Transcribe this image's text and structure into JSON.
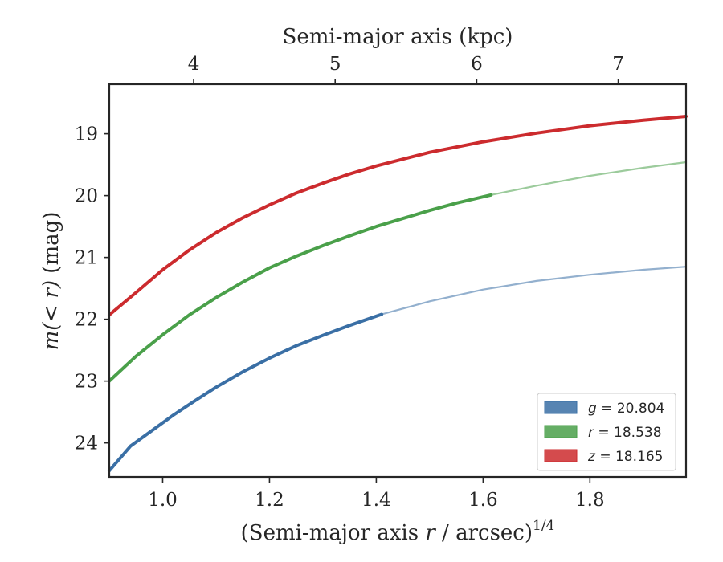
{
  "chart_data": {
    "type": "line",
    "xlabel": "(Semi-major axis r / arcsec)^1/4",
    "xlabel_parts": {
      "pre": "(Semi-major axis ",
      "var": "r",
      "mid": " / arcsec)",
      "sup": "1/4"
    },
    "ylabel": "m(< r) (mag)",
    "ylabel_parts": {
      "math": "m(< r)",
      "unit": " (mag)"
    },
    "top_xlabel": "Semi-major axis (kpc)",
    "xlim": [
      0.9,
      1.98
    ],
    "ylim": [
      24.55,
      18.2
    ],
    "y_inverted": true,
    "x_ticks": [
      "1.0",
      "1.2",
      "1.4",
      "1.6",
      "1.8"
    ],
    "x_tick_values": [
      1.0,
      1.2,
      1.4,
      1.6,
      1.8
    ],
    "y_ticks": [
      "19",
      "20",
      "21",
      "22",
      "23",
      "24"
    ],
    "y_tick_values": [
      19,
      20,
      21,
      22,
      23,
      24
    ],
    "top_ticks": [
      "4",
      "5",
      "6",
      "7"
    ],
    "top_tick_x_positions": [
      1.058,
      1.323,
      1.588,
      1.853
    ],
    "grid": false,
    "legend_position": "lower-right",
    "series": [
      {
        "name": "g = 20.804",
        "legend_var": "g",
        "legend_value": "= 20.804",
        "color": "#3a6fa5",
        "solid_until_x": 1.41,
        "x": [
          0.9,
          0.94,
          0.98,
          1.02,
          1.06,
          1.1,
          1.15,
          1.2,
          1.25,
          1.3,
          1.35,
          1.41,
          1.5,
          1.6,
          1.7,
          1.8,
          1.9,
          1.98
        ],
        "y": [
          24.45,
          24.05,
          23.8,
          23.55,
          23.32,
          23.1,
          22.85,
          22.63,
          22.43,
          22.26,
          22.1,
          21.92,
          21.71,
          21.52,
          21.38,
          21.28,
          21.2,
          21.15
        ]
      },
      {
        "name": "r = 18.538",
        "legend_var": "r",
        "legend_value": "= 18.538",
        "color": "#4aa04a",
        "solid_until_x": 1.615,
        "x": [
          0.9,
          0.95,
          1.0,
          1.05,
          1.1,
          1.15,
          1.2,
          1.25,
          1.3,
          1.35,
          1.4,
          1.45,
          1.5,
          1.55,
          1.615,
          1.7,
          1.8,
          1.9,
          1.98
        ],
        "y": [
          23.0,
          22.6,
          22.25,
          21.93,
          21.65,
          21.4,
          21.17,
          20.98,
          20.81,
          20.65,
          20.5,
          20.37,
          20.24,
          20.12,
          19.99,
          19.84,
          19.68,
          19.55,
          19.46
        ]
      },
      {
        "name": "z = 18.165",
        "legend_var": "z",
        "legend_value": "= 18.165",
        "color": "#cc2b2e",
        "solid_until_x": 1.98,
        "x": [
          0.9,
          0.95,
          1.0,
          1.05,
          1.1,
          1.15,
          1.2,
          1.25,
          1.3,
          1.35,
          1.4,
          1.5,
          1.6,
          1.7,
          1.8,
          1.9,
          1.98
        ],
        "y": [
          21.93,
          21.57,
          21.2,
          20.88,
          20.6,
          20.36,
          20.15,
          19.96,
          19.8,
          19.65,
          19.52,
          19.3,
          19.13,
          18.99,
          18.87,
          18.78,
          18.72
        ]
      }
    ]
  }
}
